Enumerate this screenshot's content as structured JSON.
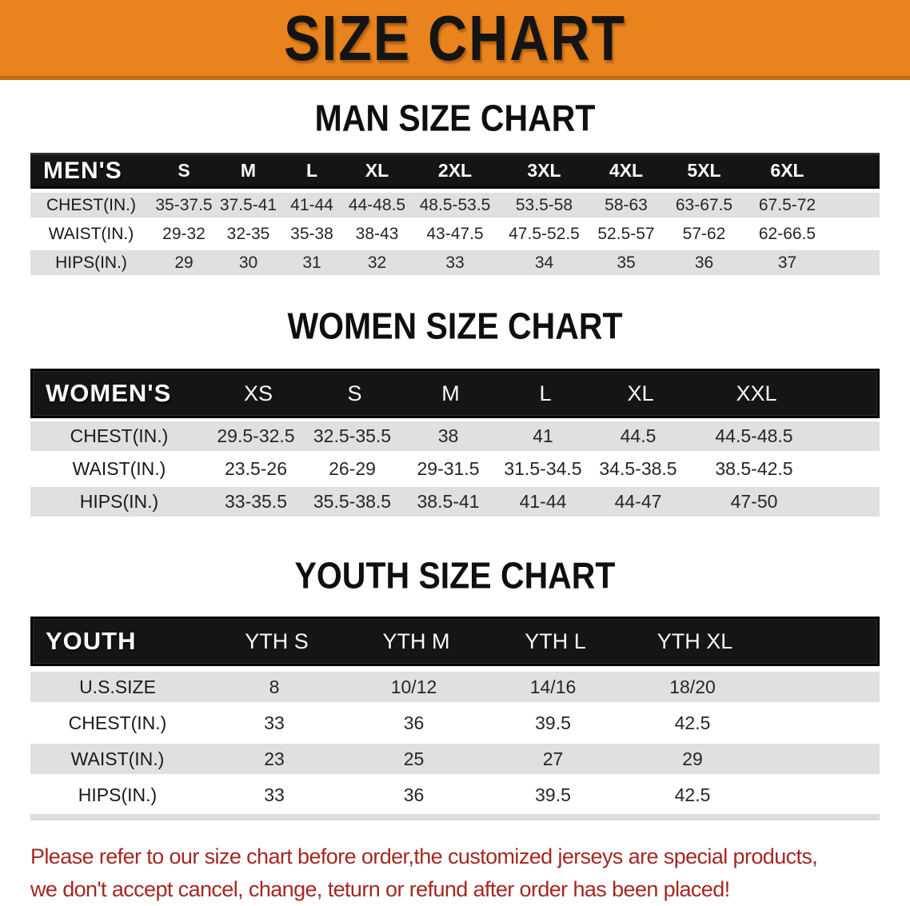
{
  "banner": {
    "title": "SIZE CHART"
  },
  "sections": [
    {
      "heading": "MAN SIZE CHART",
      "table": {
        "header_label": "MEN'S",
        "columns": [
          "S",
          "M",
          "L",
          "XL",
          "2XL",
          "3XL",
          "4XL",
          "5XL",
          "6XL"
        ],
        "rows": [
          {
            "label": "CHEST(IN.)",
            "values": [
              "35-37.5",
              "37.5-41",
              "41-44",
              "44-48.5",
              "48.5-53.5",
              "53.5-58",
              "58-63",
              "63-67.5",
              "67.5-72"
            ]
          },
          {
            "label": "WAIST(IN.)",
            "values": [
              "29-32",
              "32-35",
              "35-38",
              "38-43",
              "43-47.5",
              "47.5-52.5",
              "52.5-57",
              "57-62",
              "62-66.5"
            ]
          },
          {
            "label": "HIPS(IN.)",
            "values": [
              "29",
              "30",
              "31",
              "32",
              "33",
              "34",
              "35",
              "36",
              "37"
            ]
          }
        ]
      }
    },
    {
      "heading": "WOMEN SIZE CHART",
      "table": {
        "header_label": "WOMEN'S",
        "columns": [
          "XS",
          "S",
          "M",
          "L",
          "XL",
          "XXL"
        ],
        "rows": [
          {
            "label": "CHEST(IN.)",
            "values": [
              "29.5-32.5",
              "32.5-35.5",
              "38",
              "41",
              "44.5",
              "44.5-48.5"
            ]
          },
          {
            "label": "WAIST(IN.)",
            "values": [
              "23.5-26",
              "26-29",
              "29-31.5",
              "31.5-34.5",
              "34.5-38.5",
              "38.5-42.5"
            ]
          },
          {
            "label": "HIPS(IN.)",
            "values": [
              "33-35.5",
              "35.5-38.5",
              "38.5-41",
              "41-44",
              "44-47",
              "47-50"
            ]
          }
        ]
      }
    },
    {
      "heading": "YOUTH SIZE CHART",
      "table": {
        "header_label": "YOUTH",
        "columns": [
          "YTH S",
          "YTH M",
          "YTH L",
          "YTH XL"
        ],
        "rows": [
          {
            "label": "U.S.SIZE",
            "values": [
              "8",
              "10/12",
              "14/16",
              "18/20"
            ]
          },
          {
            "label": "CHEST(IN.)",
            "values": [
              "33",
              "36",
              "39.5",
              "42.5"
            ]
          },
          {
            "label": "WAIST(IN.)",
            "values": [
              "23",
              "25",
              "27",
              "29"
            ]
          },
          {
            "label": "HIPS(IN.)",
            "values": [
              "33",
              "36",
              "39.5",
              "42.5"
            ]
          }
        ]
      }
    }
  ],
  "footer": {
    "line1": "Please refer to our size chart before order,the customized jerseys are special products,",
    "line2": "we don't accept cancel, change, teturn or refund after order has been placed!"
  },
  "colors": {
    "banner_orange": "#e8831d",
    "banner_edge": "#c06c10",
    "bar_black": "#151515",
    "row_gray": "#e0e0e0",
    "footer_red": "#a32823"
  }
}
